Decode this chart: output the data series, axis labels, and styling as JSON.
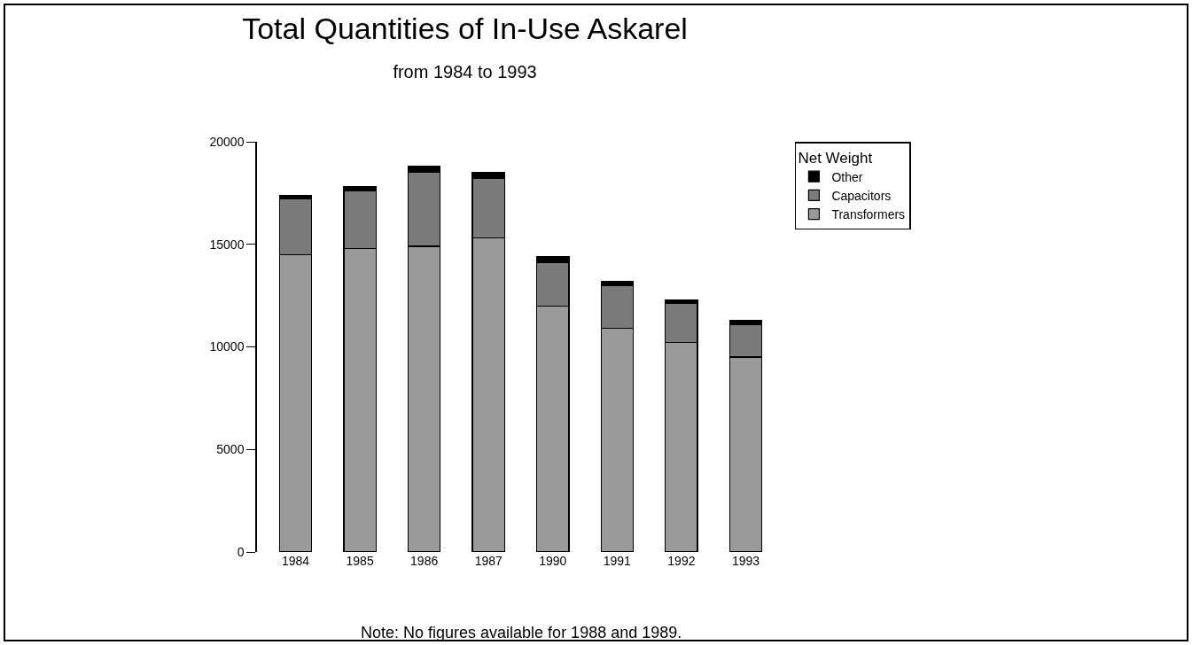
{
  "chart_data": {
    "type": "bar",
    "title": "Total Quantities of In-Use Askarel",
    "subtitle": "from 1984 to 1993",
    "categories": [
      "1984",
      "1985",
      "1986",
      "1987",
      "1990",
      "1991",
      "1992",
      "1993"
    ],
    "stacked": true,
    "series": [
      {
        "name": "Transformers",
        "color": "#9a9a9a",
        "values": [
          14500,
          14800,
          14900,
          15300,
          12000,
          10900,
          10200,
          9500
        ]
      },
      {
        "name": "Capacitors",
        "color": "#7a7a7a",
        "values": [
          2700,
          2800,
          3600,
          2900,
          2100,
          2100,
          1900,
          1600
        ]
      },
      {
        "name": "Other",
        "color": "#000000",
        "values": [
          200,
          200,
          300,
          300,
          300,
          200,
          200,
          200
        ]
      }
    ],
    "legend_title": "Net Weight",
    "legend": "top right",
    "ylim": [
      0,
      20000
    ],
    "yticks": [
      0,
      5000,
      10000,
      15000,
      20000
    ],
    "annotations": [
      "Note: No figures available for 1988 and 1989."
    ]
  }
}
